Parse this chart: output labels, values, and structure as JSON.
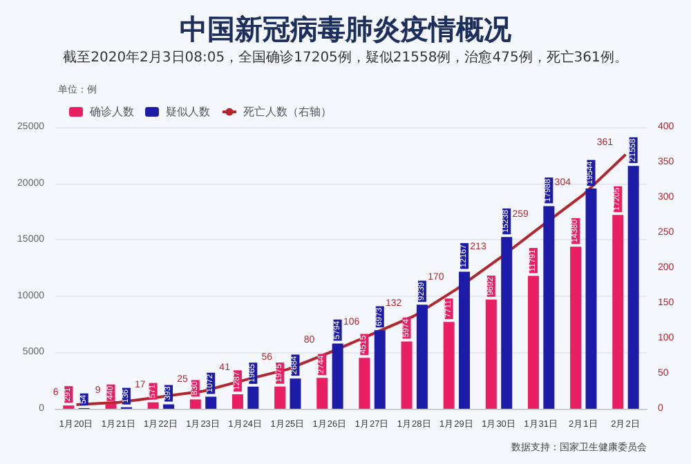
{
  "chart_data": {
    "type": "bar",
    "title": "中国新冠病毒肺炎疫情概况",
    "subtitle": "截至2020年2月3日08:05，全国确诊17205例，疑似21558例，治愈475例，死亡361例。",
    "categories": [
      "1月20日",
      "1月21日",
      "1月22日",
      "1月23日",
      "1月24日",
      "1月25日",
      "1月26日",
      "1月27日",
      "1月28日",
      "1月29日",
      "1月30日",
      "1月31日",
      "2月1日",
      "2月2日"
    ],
    "series": [
      {
        "name": "确诊人数",
        "color": "#e91e63",
        "values": [
          291,
          440,
          571,
          830,
          1287,
          1975,
          2744,
          4515,
          5974,
          7711,
          9692,
          11791,
          14380,
          17205
        ]
      },
      {
        "name": "疑似人数",
        "color": "#1c1ca8",
        "values": [
          54,
          136,
          393,
          1072,
          1965,
          2684,
          5794,
          6973,
          9239,
          12167,
          15238,
          17988,
          19544,
          21558
        ]
      },
      {
        "name": "死亡人数（右轴）",
        "type": "line",
        "axis": "y2",
        "color": "#b3262e",
        "values": [
          6,
          9,
          17,
          25,
          41,
          56,
          80,
          106,
          132,
          170,
          213,
          259,
          304,
          361
        ]
      }
    ],
    "ylim": [
      0,
      25000
    ],
    "yticks": [
      0,
      5000,
      10000,
      15000,
      20000,
      25000
    ],
    "y2lim": [
      0,
      400
    ],
    "y2ticks": [
      0,
      50,
      100,
      150,
      200,
      250,
      300,
      350,
      400
    ],
    "grid": "y",
    "legend": "top left",
    "marker": "none",
    "data_labels": true,
    "annotations": [
      "单位：例",
      "数据支持：国家卫生健康委员会"
    ]
  }
}
